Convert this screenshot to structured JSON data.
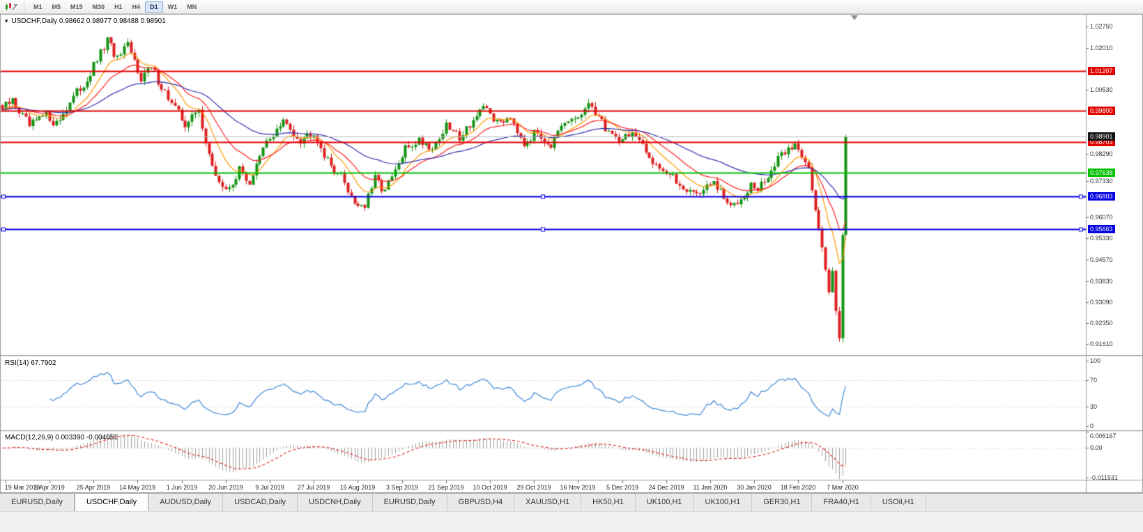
{
  "toolbar": {
    "timeframes": [
      "M1",
      "M5",
      "M15",
      "M30",
      "H1",
      "H4",
      "D1",
      "W1",
      "MN"
    ],
    "active_timeframe": "D1"
  },
  "chart_header": {
    "title_line": "USDCHF,Daily  0.98662 0.98977 0.98488 0.98901",
    "symbol": "USDCHF",
    "period": "Daily",
    "menu_arrow": "▾"
  },
  "indicators": {
    "rsi_label": "RSI(14) 67.7902",
    "macd_label": "MACD(12,26,9) 0.003390 -0.004051"
  },
  "tabs": [
    {
      "label": "EURUSD,Daily",
      "active": false
    },
    {
      "label": "USDCHF,Daily",
      "active": true
    },
    {
      "label": "AUDUSD,Daily",
      "active": false
    },
    {
      "label": "USDCAD,Daily",
      "active": false
    },
    {
      "label": "USDCNH,Daily",
      "active": false
    },
    {
      "label": "EURUSD,Daily",
      "active": false
    },
    {
      "label": "GBPUSD,H4",
      "active": false
    },
    {
      "label": "XAUUSD,H1",
      "active": false
    },
    {
      "label": "HK50,H1",
      "active": false
    },
    {
      "label": "UK100,H1",
      "active": false
    },
    {
      "label": "UK100,H1",
      "active": false
    },
    {
      "label": "GER30,H1",
      "active": false
    },
    {
      "label": "FRA40,H1",
      "active": false
    },
    {
      "label": "USOil,H1",
      "active": false
    }
  ],
  "chart_data": {
    "type": "candlestick",
    "symbol": "USDCHF",
    "timeframe": "Daily",
    "ohlc": {
      "open": 0.98662,
      "high": 0.98977,
      "low": 0.98488,
      "close": 0.98901
    },
    "price_axis": {
      "min": 0.9123,
      "max": 1.032,
      "ticks": [
        1.0275,
        1.0201,
        1.0053,
        0.9829,
        0.9733,
        0.9607,
        0.9533,
        0.9457,
        0.9383,
        0.9309,
        0.9235,
        0.9161
      ]
    },
    "hlines": [
      {
        "price": 1.01207,
        "label": "1.01207",
        "color": "#e00000",
        "width": 2,
        "handles": false
      },
      {
        "price": 0.998,
        "label": "0.99800",
        "color": "#e00000",
        "width": 2,
        "handles": false
      },
      {
        "price": 0.98703,
        "label": "0.98703",
        "color": "#e00000",
        "width": 2,
        "handles": false
      },
      {
        "price": 0.97638,
        "label": "0.97638",
        "color": "#00c000",
        "width": 2,
        "handles": false
      },
      {
        "price": 0.96803,
        "label": "0.96803",
        "color": "#0000e0",
        "width": 2,
        "handles": true
      },
      {
        "price": 0.95663,
        "label": "0.95663",
        "color": "#0000e0",
        "width": 2,
        "handles": true
      }
    ],
    "current_price": {
      "value": 0.98901,
      "label": "0.98901",
      "color": "#111111"
    },
    "candles": {
      "count": 250,
      "area_frac": 0.78,
      "noise": 0.0017,
      "wick": 0.0016,
      "up_color": "#149414",
      "down_color": "#dd2020",
      "anchors": [
        [
          0,
          0.9985
        ],
        [
          3,
          1.0015
        ],
        [
          8,
          0.9925
        ],
        [
          13,
          0.9965
        ],
        [
          16,
          0.9935
        ],
        [
          20,
          1.001
        ],
        [
          25,
          1.009
        ],
        [
          31,
          1.0225
        ],
        [
          34,
          1.016
        ],
        [
          37,
          1.0205
        ],
        [
          41,
          1.01
        ],
        [
          44,
          1.013
        ],
        [
          50,
          1.0005
        ],
        [
          54,
          0.9935
        ],
        [
          58,
          0.998
        ],
        [
          62,
          0.9775
        ],
        [
          66,
          0.9695
        ],
        [
          70,
          0.977
        ],
        [
          73,
          0.973
        ],
        [
          78,
          0.987
        ],
        [
          83,
          0.994
        ],
        [
          88,
          0.988
        ],
        [
          92,
          0.991
        ],
        [
          96,
          0.98
        ],
        [
          100,
          0.975
        ],
        [
          104,
          0.966
        ],
        [
          107,
          0.9645
        ],
        [
          110,
          0.974
        ],
        [
          113,
          0.97
        ],
        [
          117,
          0.979
        ],
        [
          119,
          0.9845
        ],
        [
          123,
          0.988
        ],
        [
          127,
          0.985
        ],
        [
          131,
          0.9925
        ],
        [
          135,
          0.989
        ],
        [
          139,
          0.995
        ],
        [
          143,
          0.999
        ],
        [
          146,
          0.9935
        ],
        [
          150,
          0.9965
        ],
        [
          154,
          0.987
        ],
        [
          158,
          0.9905
        ],
        [
          162,
          0.986
        ],
        [
          166,
          0.993
        ],
        [
          170,
          0.996
        ],
        [
          174,
          1.0
        ],
        [
          178,
          0.992
        ],
        [
          182,
          0.988
        ],
        [
          186,
          0.9905
        ],
        [
          190,
          0.983
        ],
        [
          195,
          0.9775
        ],
        [
          200,
          0.972
        ],
        [
          205,
          0.969
        ],
        [
          210,
          0.9725
        ],
        [
          215,
          0.964
        ],
        [
          221,
          0.972
        ],
        [
          223,
          0.97
        ],
        [
          227,
          0.977
        ],
        [
          231,
          0.984
        ],
        [
          234,
          0.986
        ],
        [
          236,
          0.983
        ],
        [
          238,
          0.979
        ],
        [
          239,
          0.97
        ],
        [
          240,
          0.962
        ],
        [
          241,
          0.956
        ],
        [
          242,
          0.95
        ],
        [
          243,
          0.942
        ],
        [
          244,
          0.936
        ],
        [
          245,
          0.943
        ],
        [
          246,
          0.929
        ],
        [
          247,
          0.9175
        ],
        [
          248,
          0.954
        ],
        [
          249,
          0.989
        ]
      ]
    },
    "moving_averages": [
      {
        "period": 10,
        "color": "#ff9900"
      },
      {
        "period": 20,
        "color": "#ff2020"
      },
      {
        "period": 50,
        "color": "#3030b0"
      }
    ],
    "rsi": {
      "period": 14,
      "value": 67.7902,
      "levels": [
        100,
        70,
        30,
        0
      ],
      "color": "#3c86d8"
    },
    "macd": {
      "fast": 12,
      "slow": 26,
      "signal": 9,
      "value": 0.00339,
      "signal_value": -0.004051,
      "ylim": [
        -0.0125,
        0.0063
      ],
      "ticks": [
        {
          "v": 0.006167,
          "label": "0.006167"
        },
        {
          "v": 0,
          "label": "0.00"
        },
        {
          "v": -0.011531,
          "label": "-0.011531"
        }
      ],
      "hist_color": "#a0a0a0",
      "signal_color": "#e02020"
    },
    "dates": [
      "19 Mar 2019",
      "6 Apr 2019",
      "25 Apr 2019",
      "14 May 2019",
      "1 Jun 2019",
      "20 Jun 2019",
      "9 Jul 2019",
      "27 Jul 2019",
      "15 Aug 2019",
      "3 Sep 2019",
      "21 Sep 2019",
      "10 Oct 2019",
      "29 Oct 2019",
      "16 Nov 2019",
      "5 Dec 2019",
      "24 Dec 2019",
      "11 Jan 2020",
      "30 Jan 2020",
      "18 Feb 2020",
      "7 Mar 2020"
    ]
  }
}
